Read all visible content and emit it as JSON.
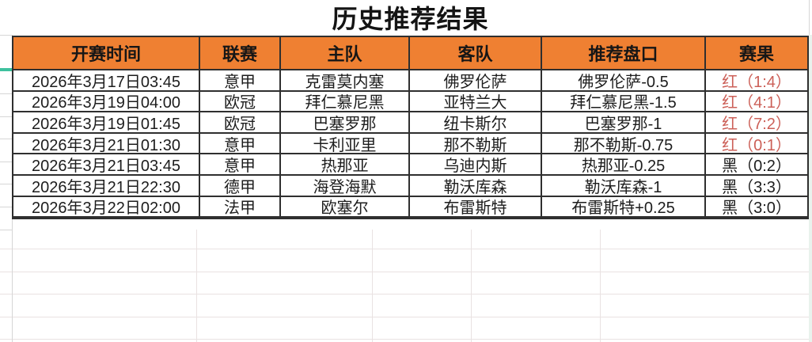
{
  "title": "历史推荐结果",
  "columns": [
    "开赛时间",
    "联赛",
    "主队",
    "客队",
    "推荐盘口",
    "赛果"
  ],
  "rows": [
    {
      "time": "2026年3月17日03:45",
      "league": "意甲",
      "home": "克雷莫内塞",
      "away": "佛罗伦萨",
      "handicap": "佛罗伦萨-0.5",
      "result": "红（1:4）",
      "result_color": "red"
    },
    {
      "time": "2026年3月19日04:00",
      "league": "欧冠",
      "home": "拜仁慕尼黑",
      "away": "亚特兰大",
      "handicap": "拜仁慕尼黑-1.5",
      "result": "红（4:1）",
      "result_color": "red"
    },
    {
      "time": "2026年3月19日01:45",
      "league": "欧冠",
      "home": "巴塞罗那",
      "away": "纽卡斯尔",
      "handicap": "巴塞罗那-1",
      "result": "红（7:2）",
      "result_color": "red"
    },
    {
      "time": "2026年3月21日01:30",
      "league": "意甲",
      "home": "卡利亚里",
      "away": "那不勒斯",
      "handicap": "那不勒斯-0.75",
      "result": "红（0:1）",
      "result_color": "red"
    },
    {
      "time": "2026年3月21日03:45",
      "league": "意甲",
      "home": "热那亚",
      "away": "乌迪内斯",
      "handicap": "热那亚-0.25",
      "result": "黑（0:2）",
      "result_color": "black"
    },
    {
      "time": "2026年3月21日22:30",
      "league": "德甲",
      "home": "海登海默",
      "away": "勒沃库森",
      "handicap": "勒沃库森-1",
      "result": "黑（3:3）",
      "result_color": "black"
    },
    {
      "time": "2026年3月22日02:00",
      "league": "法甲",
      "home": "欧塞尔",
      "away": "布雷斯特",
      "handicap": "布雷斯特+0.25",
      "result": "黑（3:0）",
      "result_color": "black"
    }
  ],
  "colors": {
    "header_bg": "#ef8032",
    "result_red": "#cc6058",
    "result_black": "#1d1d1d",
    "table_border": "#2f2f2f",
    "selection_accent": "#3ec19e"
  }
}
